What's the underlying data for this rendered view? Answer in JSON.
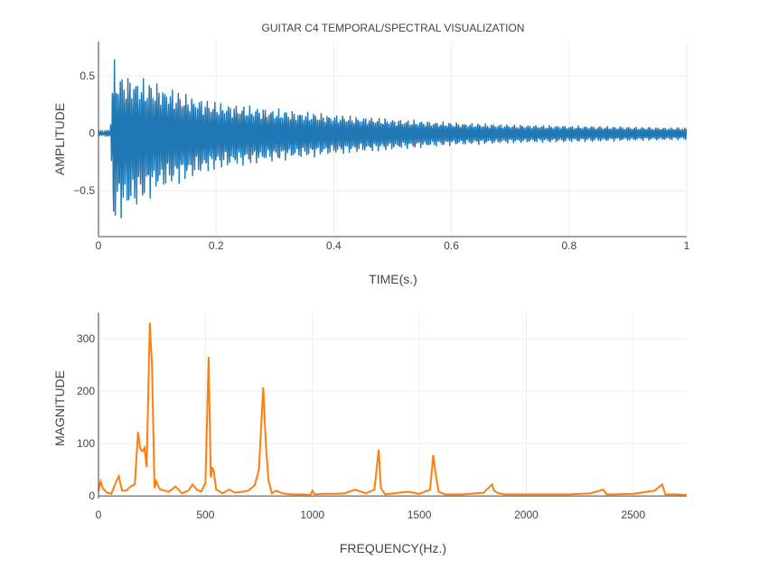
{
  "chart_data": [
    {
      "type": "line",
      "title": "GUITAR C4 TEMPORAL/SPECTRAL VISUALIZATION",
      "xlabel": "TIME(s.)",
      "ylabel": "AMPLITUDE",
      "xlim": [
        0,
        1
      ],
      "ylim": [
        -0.9,
        0.8
      ],
      "xticks": [
        0,
        0.2,
        0.4,
        0.6,
        0.8,
        1
      ],
      "xtick_labels": [
        "0",
        "0.2",
        "0.4",
        "0.6",
        "0.8",
        "1"
      ],
      "yticks": [
        0.5,
        0,
        -0.5
      ],
      "ytick_labels": [
        "0.5",
        "0",
        "−0.5"
      ],
      "grid": true,
      "color": "#1f77b4",
      "series": [
        {
          "name": "",
          "note_envelope": {
            "t": [
              0,
              0.02,
              0.025,
              0.03,
              0.05,
              0.08,
              0.1,
              0.15,
              0.2,
              0.3,
              0.4,
              0.5,
              0.6,
              0.7,
              0.8,
              0.9,
              1.0
            ],
            "max": [
              0.02,
              0.03,
              0.72,
              0.55,
              0.52,
              0.48,
              0.45,
              0.35,
              0.28,
              0.22,
              0.17,
              0.13,
              0.1,
              0.08,
              0.07,
              0.06,
              0.05
            ],
            "min": [
              -0.02,
              -0.03,
              -0.82,
              -0.78,
              -0.72,
              -0.6,
              -0.52,
              -0.42,
              -0.32,
              -0.25,
              -0.19,
              -0.15,
              -0.11,
              -0.09,
              -0.08,
              -0.07,
              -0.06
            ]
          }
        }
      ]
    },
    {
      "type": "line",
      "title": "",
      "xlabel": "FREQUENCY(Hz.)",
      "ylabel": "MAGNITUDE",
      "xlim": [
        0,
        2750
      ],
      "ylim": [
        -5,
        350
      ],
      "xticks": [
        0,
        500,
        1000,
        1500,
        2000,
        2500
      ],
      "xtick_labels": [
        "0",
        "500",
        "1000",
        "1500",
        "2000",
        "2500"
      ],
      "yticks": [
        0,
        100,
        200,
        300
      ],
      "ytick_labels": [
        "0",
        "100",
        "200",
        "300"
      ],
      "grid": true,
      "color": "#ff7f0e",
      "series": [
        {
          "name": "",
          "x": [
            0,
            10,
            20,
            40,
            60,
            80,
            95,
            110,
            130,
            150,
            170,
            185,
            195,
            205,
            215,
            225,
            240,
            250,
            262,
            270,
            280,
            290,
            310,
            330,
            360,
            390,
            420,
            440,
            460,
            480,
            500,
            515,
            525,
            532,
            540,
            550,
            560,
            580,
            610,
            640,
            670,
            700,
            730,
            750,
            770,
            783,
            795,
            810,
            830,
            860,
            900,
            950,
            990,
            1000,
            1010,
            1050,
            1100,
            1150,
            1200,
            1250,
            1290,
            1310,
            1320,
            1340,
            1400,
            1450,
            1500,
            1550,
            1565,
            1575,
            1590,
            1620,
            1700,
            1800,
            1840,
            1850,
            1870,
            1900,
            2000,
            2100,
            2200,
            2300,
            2360,
            2375,
            2400,
            2500,
            2600,
            2635,
            2650,
            2700,
            2750
          ],
          "y": [
            10,
            28,
            15,
            6,
            4,
            25,
            38,
            10,
            10,
            18,
            22,
            122,
            90,
            85,
            92,
            55,
            330,
            250,
            15,
            28,
            18,
            12,
            10,
            8,
            18,
            5,
            10,
            22,
            12,
            8,
            25,
            265,
            35,
            55,
            45,
            12,
            10,
            5,
            12,
            6,
            8,
            10,
            20,
            50,
            207,
            95,
            30,
            5,
            10,
            5,
            3,
            3,
            2,
            10,
            3,
            4,
            4,
            5,
            12,
            5,
            12,
            88,
            15,
            3,
            6,
            8,
            4,
            12,
            78,
            45,
            8,
            3,
            3,
            6,
            22,
            10,
            5,
            3,
            3,
            3,
            3,
            5,
            12,
            3,
            3,
            4,
            10,
            22,
            3,
            3,
            2
          ]
        }
      ]
    }
  ]
}
